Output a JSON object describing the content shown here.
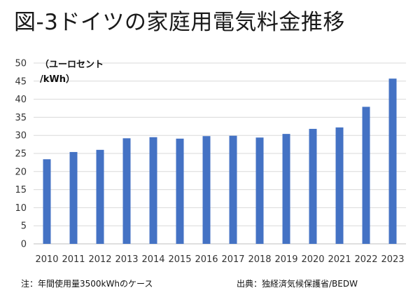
{
  "header": {
    "title": "図-3ドイツの家庭用電気料金推移"
  },
  "footer": {
    "note": "注：年間使用量3500kWhのケース",
    "source": "出典：独経済気候保護省/BEDW"
  },
  "chart_data": {
    "type": "bar",
    "title": "図-3ドイツの家庭用電気料金推移",
    "ylabel_lines": [
      "（ユーロセント",
      "/kWh）"
    ],
    "xlabel": "",
    "categories": [
      "2010",
      "2011",
      "2012",
      "2013",
      "2014",
      "2015",
      "2016",
      "2017",
      "2018",
      "2019",
      "2020",
      "2021",
      "2022",
      "2023"
    ],
    "values": [
      23.4,
      25.4,
      26.0,
      29.2,
      29.5,
      29.1,
      29.8,
      29.9,
      29.4,
      30.4,
      31.8,
      32.2,
      37.9,
      45.7
    ],
    "ylim": [
      0,
      50
    ],
    "yticks": [
      0,
      5,
      10,
      15,
      20,
      25,
      30,
      35,
      40,
      45,
      50
    ],
    "grid": true,
    "legend": "none",
    "colors": {
      "bar": "#4472C4",
      "grid": "#d9d9d9"
    }
  }
}
